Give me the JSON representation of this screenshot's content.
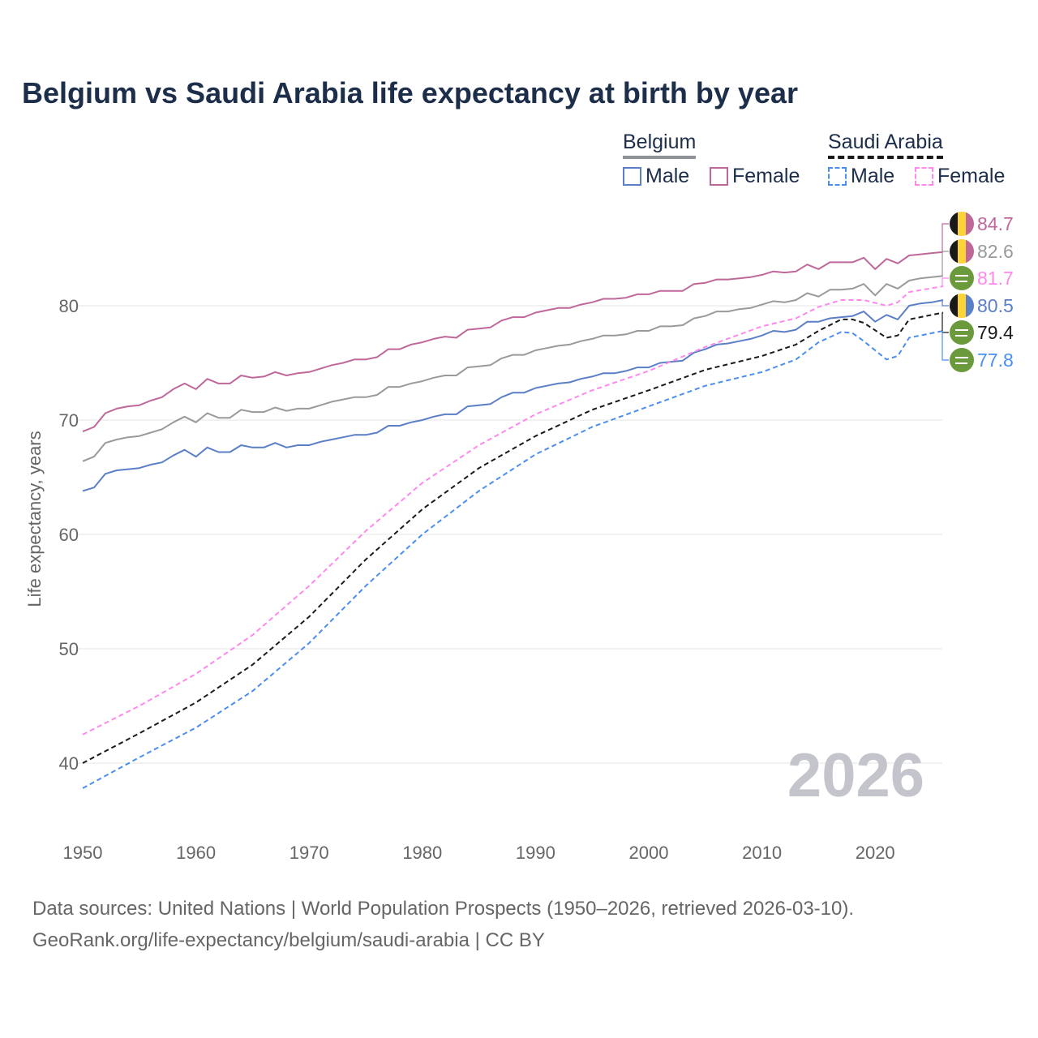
{
  "title": "Belgium vs Saudi Arabia life expectancy at birth by year",
  "legend": {
    "groups": [
      {
        "name": "Belgium",
        "items": [
          "Male",
          "Female"
        ]
      },
      {
        "name": "Saudi Arabia",
        "items": [
          "Male",
          "Female"
        ]
      }
    ]
  },
  "watermark_year": "2026",
  "footer": {
    "line1": "Data sources: United Nations | World Population Prospects (1950–2026, retrieved 2026-03-10).",
    "line2": "GeoRank.org/life-expectancy/belgium/saudi-arabia | CC BY"
  },
  "colors": {
    "belgium_male": "#5b7fc7",
    "belgium_female": "#c0679a",
    "belgium_total": "#9a9a9a",
    "saudi_male": "#4a8ff0",
    "saudi_female": "#ff88ee",
    "saudi_total": "#1a1a1a",
    "grid": "#e6e6e6",
    "axis_text": "#666666"
  },
  "chart_data": {
    "type": "line",
    "title": "Belgium vs Saudi Arabia life expectancy at birth by year",
    "xlabel": "",
    "ylabel": "Life expectancy, years",
    "xlim": [
      1950,
      2026
    ],
    "ylim": [
      36,
      88
    ],
    "xticks": [
      "1950",
      "1960",
      "1970",
      "1980",
      "1990",
      "2000",
      "2010",
      "2020"
    ],
    "yticks": [
      "40",
      "50",
      "60",
      "70",
      "80"
    ],
    "grid": true,
    "legend_position": "top-right",
    "series": [
      {
        "name": "Belgium Female",
        "key": "belgium_female",
        "dashed": false,
        "end_label": "84.7",
        "flag": "belgium",
        "x_start": 1950,
        "y": [
          69.0,
          69.4,
          70.6,
          71.0,
          71.2,
          71.3,
          71.7,
          72.0,
          72.7,
          73.2,
          72.7,
          73.6,
          73.2,
          73.2,
          73.9,
          73.7,
          73.8,
          74.2,
          73.9,
          74.1,
          74.2,
          74.5,
          74.8,
          75.0,
          75.3,
          75.3,
          75.5,
          76.2,
          76.2,
          76.6,
          76.8,
          77.1,
          77.3,
          77.2,
          77.9,
          78.0,
          78.1,
          78.7,
          79.0,
          79.0,
          79.4,
          79.6,
          79.8,
          79.8,
          80.1,
          80.3,
          80.6,
          80.6,
          80.7,
          81.0,
          81.0,
          81.3,
          81.3,
          81.3,
          81.9,
          82.0,
          82.3,
          82.3,
          82.4,
          82.5,
          82.7,
          83.0,
          82.9,
          83.0,
          83.6,
          83.2,
          83.8,
          83.8,
          83.8,
          84.2,
          83.2,
          84.1,
          83.7,
          84.4,
          84.5,
          84.6,
          84.7
        ]
      },
      {
        "name": "Belgium Total",
        "key": "belgium_total",
        "dashed": false,
        "end_label": "82.6",
        "flag": "belgium",
        "x_start": 1950,
        "y": [
          66.4,
          66.8,
          68.0,
          68.3,
          68.5,
          68.6,
          68.9,
          69.2,
          69.8,
          70.3,
          69.8,
          70.6,
          70.2,
          70.2,
          70.9,
          70.7,
          70.7,
          71.1,
          70.8,
          71.0,
          71.0,
          71.3,
          71.6,
          71.8,
          72.0,
          72.0,
          72.2,
          72.9,
          72.9,
          73.2,
          73.4,
          73.7,
          73.9,
          73.9,
          74.6,
          74.7,
          74.8,
          75.4,
          75.7,
          75.7,
          76.1,
          76.3,
          76.5,
          76.6,
          76.9,
          77.1,
          77.4,
          77.4,
          77.5,
          77.8,
          77.8,
          78.2,
          78.2,
          78.3,
          78.9,
          79.1,
          79.5,
          79.5,
          79.7,
          79.8,
          80.1,
          80.4,
          80.3,
          80.5,
          81.1,
          80.8,
          81.4,
          81.4,
          81.5,
          81.9,
          80.9,
          81.9,
          81.5,
          82.2,
          82.4,
          82.5,
          82.6
        ]
      },
      {
        "name": "Saudi Arabia Female",
        "key": "saudi_female",
        "dashed": true,
        "end_label": "81.7",
        "flag": "saudi",
        "x": [
          1950,
          1955,
          1960,
          1965,
          1970,
          1975,
          1980,
          1985,
          1990,
          1995,
          2000,
          2005,
          2010,
          2013,
          2015,
          2017,
          2019,
          2021,
          2022,
          2023,
          2026
        ],
        "y": [
          42.5,
          45.0,
          47.8,
          51.2,
          55.5,
          60.3,
          64.5,
          67.8,
          70.5,
          72.6,
          74.3,
          76.4,
          78.2,
          78.9,
          79.9,
          80.5,
          80.5,
          80.0,
          80.3,
          81.2,
          81.7
        ]
      },
      {
        "name": "Belgium Male",
        "key": "belgium_male",
        "dashed": false,
        "end_label": "80.5",
        "flag": "belgium",
        "x_start": 1950,
        "y": [
          63.8,
          64.1,
          65.3,
          65.6,
          65.7,
          65.8,
          66.1,
          66.3,
          66.9,
          67.4,
          66.8,
          67.6,
          67.2,
          67.2,
          67.8,
          67.6,
          67.6,
          68.0,
          67.6,
          67.8,
          67.8,
          68.1,
          68.3,
          68.5,
          68.7,
          68.7,
          68.9,
          69.5,
          69.5,
          69.8,
          70.0,
          70.3,
          70.5,
          70.5,
          71.2,
          71.3,
          71.4,
          72.0,
          72.4,
          72.4,
          72.8,
          73.0,
          73.2,
          73.3,
          73.6,
          73.8,
          74.1,
          74.1,
          74.3,
          74.6,
          74.6,
          75.0,
          75.1,
          75.2,
          75.9,
          76.2,
          76.6,
          76.7,
          76.9,
          77.1,
          77.4,
          77.8,
          77.7,
          77.9,
          78.6,
          78.6,
          78.9,
          79.0,
          79.1,
          79.5,
          78.6,
          79.2,
          78.8,
          80.0,
          80.2,
          80.3,
          80.5
        ]
      },
      {
        "name": "Saudi Arabia Total",
        "key": "saudi_total",
        "dashed": true,
        "end_label": "79.4",
        "flag": "saudi",
        "x": [
          1950,
          1955,
          1960,
          1965,
          1970,
          1975,
          1980,
          1985,
          1990,
          1995,
          2000,
          2005,
          2010,
          2013,
          2015,
          2017,
          2018,
          2019,
          2021,
          2022,
          2023,
          2026
        ],
        "y": [
          40.0,
          42.6,
          45.3,
          48.6,
          52.8,
          57.8,
          62.2,
          65.8,
          68.6,
          70.9,
          72.6,
          74.4,
          75.6,
          76.6,
          77.8,
          78.8,
          78.8,
          78.5,
          77.2,
          77.4,
          78.8,
          79.4
        ]
      },
      {
        "name": "Saudi Arabia Male",
        "key": "saudi_male",
        "dashed": true,
        "end_label": "77.8",
        "flag": "saudi",
        "x": [
          1950,
          1955,
          1960,
          1965,
          1970,
          1975,
          1980,
          1985,
          1990,
          1995,
          2000,
          2005,
          2010,
          2013,
          2015,
          2017,
          2018,
          2019,
          2021,
          2022,
          2023,
          2026
        ],
        "y": [
          37.8,
          40.5,
          43.1,
          46.3,
          50.5,
          55.5,
          60.0,
          63.8,
          67.0,
          69.4,
          71.2,
          73.0,
          74.2,
          75.3,
          76.8,
          77.7,
          77.6,
          76.9,
          75.3,
          75.6,
          77.2,
          77.8
        ]
      }
    ]
  }
}
